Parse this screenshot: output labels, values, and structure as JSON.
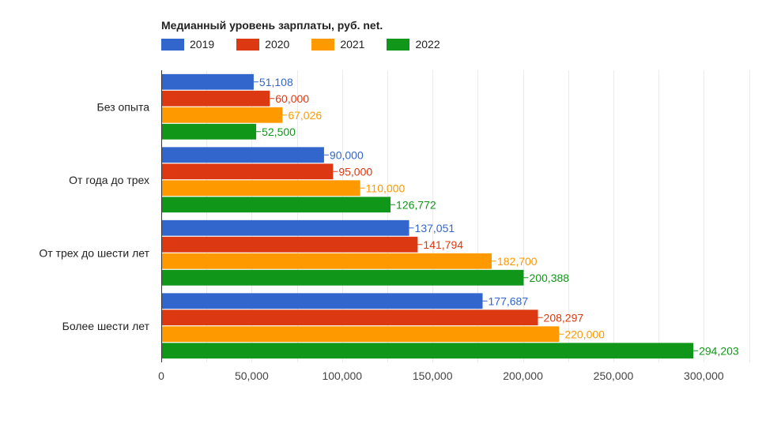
{
  "chart_data": {
    "type": "bar",
    "orientation": "horizontal",
    "title": "Медианный уровень зарплаты, руб. net.",
    "categories": [
      "Без опыта",
      "От года до трех",
      "От трех до шести лет",
      "Более шести лет"
    ],
    "series": [
      {
        "name": "2019",
        "color": "#3366cc",
        "values": [
          51108,
          90000,
          137051,
          177687
        ],
        "labels": [
          "51,108",
          "90,000",
          "137,051",
          "177,687"
        ]
      },
      {
        "name": "2020",
        "color": "#dc3912",
        "values": [
          60000,
          95000,
          141794,
          208297
        ],
        "labels": [
          "60,000",
          "95,000",
          "141,794",
          "208,297"
        ]
      },
      {
        "name": "2021",
        "color": "#ff9900",
        "values": [
          67026,
          110000,
          182700,
          220000
        ],
        "labels": [
          "67,026",
          "110,000",
          "182,700",
          "220,000"
        ]
      },
      {
        "name": "2022",
        "color": "#109618",
        "values": [
          52500,
          126772,
          200388,
          294203
        ],
        "labels": [
          "52,500",
          "126,772",
          "200,388",
          "294,203"
        ]
      }
    ],
    "xlim": [
      0,
      330000
    ],
    "x_ticks": [
      0,
      50000,
      100000,
      150000,
      200000,
      250000,
      300000
    ],
    "x_tick_labels": [
      "0",
      "50,000",
      "100,000",
      "150,000",
      "200,000",
      "250,000",
      "300,000"
    ],
    "grid": true,
    "legend_position": "top-left"
  }
}
